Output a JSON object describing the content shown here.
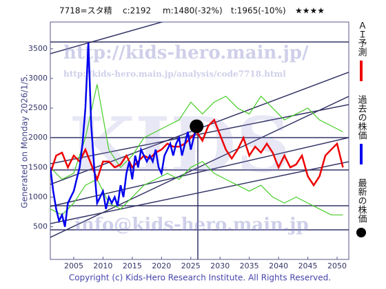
{
  "chart_data": {
    "type": "line",
    "header": [
      "7718=スタ精",
      "c:2192",
      "m:1480(-32%)",
      "t:1965(-10%)",
      "★★★★"
    ],
    "watermarks": [
      "http://kids-hero.main.jp/",
      "http://kids-hero.main.jp/analysis/code7718.html",
      "KIDS",
      "info@kids-hero.main.jp"
    ],
    "y_label": "Generated on Monday 2026/1/5.",
    "copyright": "Copyright (c) Kids-Hero Research Institute. All Rights Reserved.",
    "xlim": [
      2001,
      2052
    ],
    "ylim": [
      -50,
      3950
    ],
    "xticks": [
      2005,
      2010,
      2015,
      2020,
      2025,
      2030,
      2035,
      2040,
      2045,
      2050
    ],
    "yticks": [
      500,
      1000,
      1500,
      2000,
      2500,
      3000,
      3500
    ],
    "series": [
      {
        "color": "#44cc22",
        "style": "line",
        "x": [
          2001,
          2003,
          2005,
          2007,
          2009,
          2011,
          2013,
          2015,
          2017,
          2019,
          2021,
          2023,
          2025,
          2027,
          2029,
          2031,
          2033,
          2035,
          2037,
          2039,
          2041,
          2043,
          2045,
          2047,
          2049,
          2051
        ],
        "values": [
          1500,
          1300,
          1400,
          2000,
          2900,
          1800,
          1500,
          1700,
          2000,
          2100,
          2200,
          2300,
          2600,
          2400,
          2600,
          2700,
          2500,
          2400,
          2700,
          2500,
          2300,
          2400,
          2500,
          2300,
          2200,
          2100
        ]
      },
      {
        "color": "#44cc22",
        "style": "line",
        "x": [
          2001,
          2003,
          2005,
          2007,
          2009,
          2011,
          2013,
          2015,
          2017,
          2019,
          2021,
          2023,
          2025,
          2027,
          2029,
          2031,
          2033,
          2035,
          2037,
          2039,
          2041,
          2043,
          2045,
          2047,
          2049,
          2051
        ],
        "values": [
          800,
          700,
          900,
          1200,
          1300,
          900,
          800,
          1000,
          1200,
          1300,
          1400,
          1300,
          1500,
          1600,
          1400,
          1300,
          1200,
          1100,
          1200,
          1000,
          900,
          1000,
          900,
          800,
          700,
          700
        ]
      },
      {
        "name": "ＡＩ予測",
        "color": "#ee0000",
        "style": "line",
        "x": [
          2001,
          2002,
          2003,
          2004,
          2005,
          2006,
          2007,
          2008,
          2009,
          2010,
          2011,
          2012,
          2013,
          2014,
          2015,
          2016,
          2017,
          2018,
          2019,
          2020,
          2021,
          2022,
          2023,
          2024,
          2025,
          2026,
          2027,
          2028,
          2029,
          2030,
          2031,
          2032,
          2033,
          2034,
          2035,
          2036,
          2037,
          2038,
          2039,
          2040,
          2041,
          2042,
          2043,
          2044,
          2045,
          2046,
          2047,
          2048,
          2049,
          2050,
          2051
        ],
        "values": [
          1400,
          1700,
          1750,
          1500,
          1700,
          1600,
          1800,
          1550,
          1300,
          1600,
          1600,
          1500,
          1550,
          1700,
          1500,
          1600,
          1700,
          1650,
          1750,
          1800,
          1900,
          1850,
          1850,
          1900,
          2000,
          2100,
          1950,
          2200,
          2300,
          2050,
          1800,
          1650,
          1800,
          2000,
          1700,
          1850,
          1750,
          1900,
          1750,
          1500,
          1700,
          1500,
          1550,
          1700,
          1350,
          1200,
          1350,
          1700,
          1800,
          1900,
          1500
        ]
      },
      {
        "name": "過去の株価",
        "color": "#0000ee",
        "style": "line",
        "x": [
          2001,
          2001.5,
          2002,
          2002.5,
          2003,
          2003.5,
          2004,
          2004.5,
          2005,
          2005.5,
          2006,
          2006.5,
          2007,
          2007.5,
          2008,
          2008.5,
          2009,
          2009.5,
          2010,
          2010.5,
          2011,
          2011.5,
          2012,
          2012.5,
          2013,
          2013.5,
          2014,
          2014.5,
          2015,
          2015.5,
          2016,
          2016.5,
          2017,
          2017.5,
          2018,
          2018.5,
          2019,
          2019.5,
          2020,
          2020.5,
          2021,
          2021.5,
          2022,
          2022.5,
          2023,
          2023.5,
          2024,
          2024.5,
          2025,
          2025.5,
          2026
        ],
        "values": [
          1500,
          1100,
          800,
          600,
          700,
          500,
          900,
          1000,
          1100,
          1300,
          1500,
          1900,
          2500,
          3600,
          2200,
          1500,
          900,
          1000,
          1100,
          800,
          1000,
          900,
          1000,
          850,
          1200,
          1000,
          1400,
          1600,
          1300,
          1700,
          1500,
          1800,
          1700,
          1600,
          1700,
          1600,
          1800,
          1500,
          1400,
          1700,
          1800,
          1900,
          1700,
          1900,
          2000,
          1700,
          1900,
          2100,
          1800,
          2000,
          2192
        ]
      },
      {
        "name": "最新の株価",
        "color": "#000000",
        "style": "dot",
        "x": [
          2026
        ],
        "values": [
          2192
        ]
      }
    ]
  }
}
